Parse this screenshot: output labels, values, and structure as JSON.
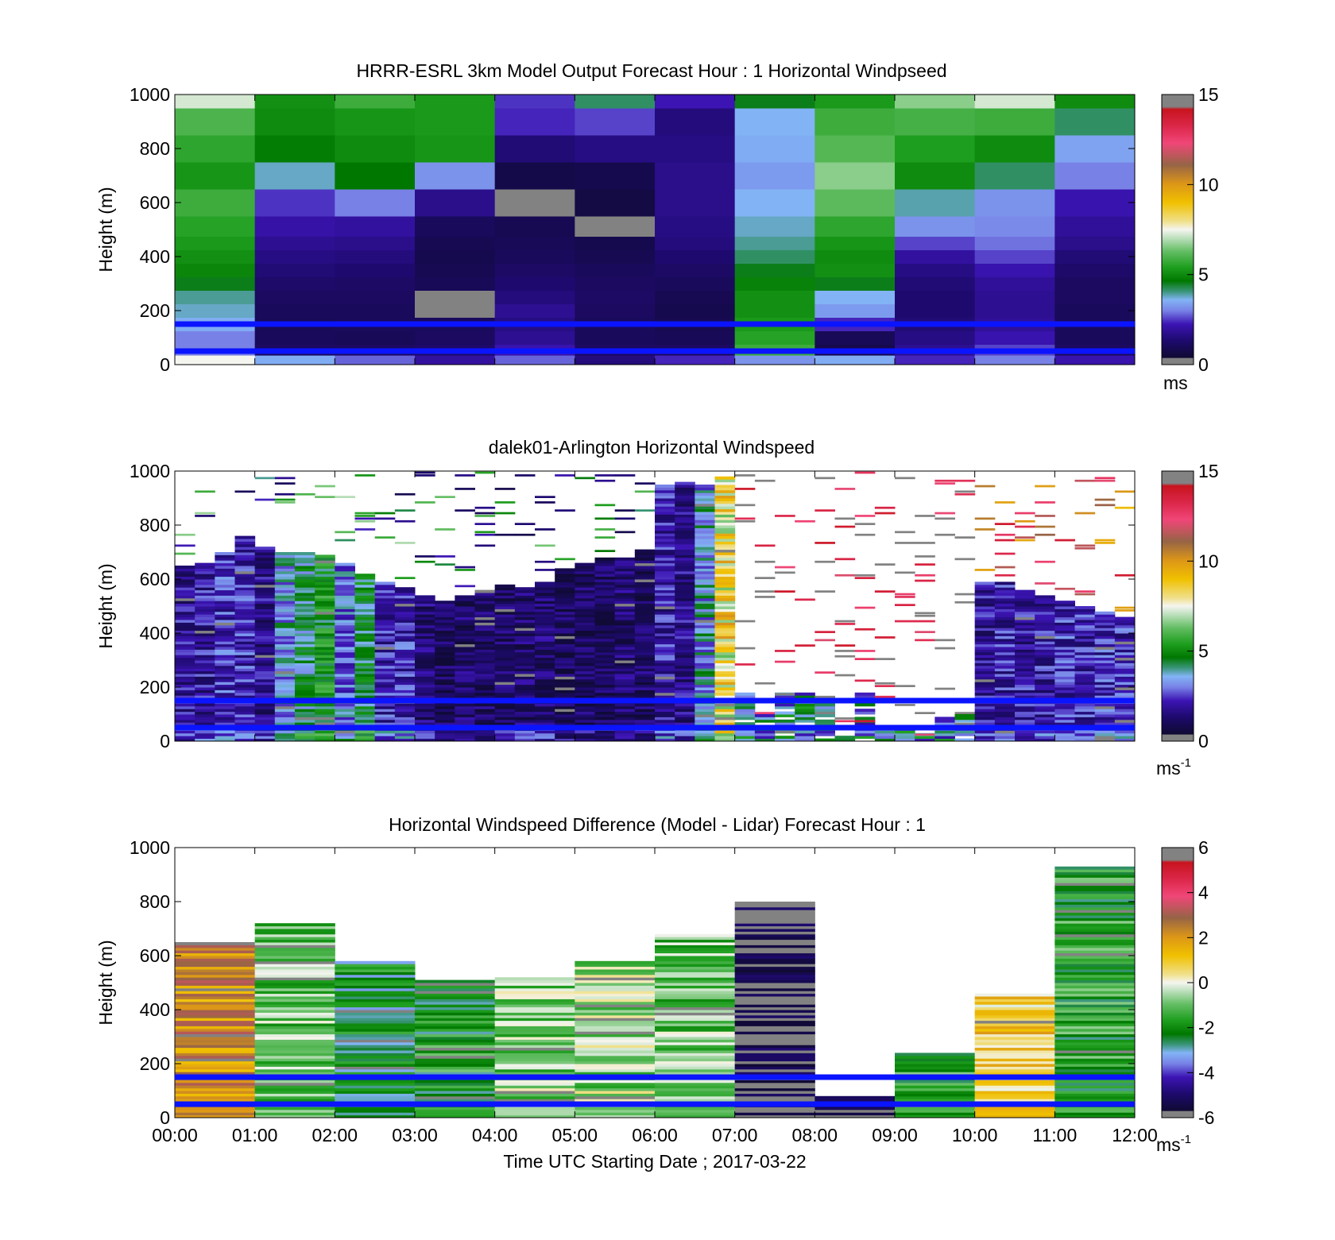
{
  "chart_data": [
    {
      "type": "heatmap",
      "title": "HRRR-ESRL 3km Model Output   Forecast Hour : 1 Horizontal Windpseed",
      "ylabel": "Height (m)",
      "xlabel": "",
      "x_ticks": [
        "",
        "",
        "",
        "",
        "",
        "",
        "",
        "",
        "",
        "",
        "",
        "",
        ""
      ],
      "y_ticks": [
        "0",
        "200",
        "400",
        "600",
        "800",
        "1000"
      ],
      "ylim": [
        0,
        1000
      ],
      "xlim_hours": [
        0,
        12
      ],
      "colorbar": {
        "ticks": [
          "0",
          "5",
          "10",
          "15"
        ],
        "range": [
          0,
          15
        ],
        "unit": "ms",
        "unit_sup": ""
      },
      "reference_lines_m": [
        50,
        150
      ],
      "grid": false,
      "model_levels_m": [
        20,
        50,
        100,
        150,
        200,
        250,
        300,
        350,
        400,
        450,
        500,
        600,
        700,
        800,
        900,
        1000
      ],
      "columns": [
        [
          7.5,
          3.0,
          3.0,
          3.5,
          3.8,
          4.0,
          4.5,
          4.9,
          5.1,
          5.3,
          5.5,
          5.8,
          5.2,
          5.6,
          6.0,
          7.2
        ],
        [
          3.5,
          1.0,
          0.9,
          0.8,
          0.9,
          1.0,
          1.2,
          1.4,
          1.6,
          1.8,
          2.1,
          2.5,
          3.8,
          4.7,
          5.0,
          5.1
        ],
        [
          2.8,
          1.0,
          0.8,
          0.9,
          0.9,
          1.0,
          1.1,
          1.3,
          1.5,
          1.7,
          2.0,
          3.0,
          4.6,
          5.0,
          5.2,
          5.8
        ],
        [
          2.0,
          1.2,
          1.0,
          0.9,
          -1,
          -1,
          0.8,
          0.7,
          0.6,
          0.7,
          0.9,
          1.7,
          3.2,
          5.2,
          5.3,
          5.3
        ],
        [
          2.8,
          2.2,
          1.8,
          1.6,
          1.8,
          1.5,
          1.3,
          1.1,
          0.9,
          0.8,
          0.7,
          -1,
          0.5,
          1.4,
          2.4,
          2.5
        ],
        [
          1.5,
          1.0,
          0.9,
          0.9,
          1.0,
          1.1,
          1.0,
          0.9,
          0.7,
          0.6,
          -1,
          0.4,
          0.6,
          1.6,
          2.6,
          4.2
        ],
        [
          2.4,
          1.0,
          0.8,
          0.7,
          0.6,
          0.7,
          0.9,
          1.1,
          1.3,
          1.5,
          1.6,
          1.7,
          1.7,
          1.6,
          1.5,
          2.3
        ],
        [
          3.2,
          5.8,
          5.5,
          5.3,
          5.1,
          5.1,
          4.8,
          4.5,
          4.2,
          4.0,
          3.8,
          3.6,
          3.3,
          3.5,
          3.6,
          4.5
        ],
        [
          3.5,
          0.6,
          0.8,
          2.4,
          3.3,
          3.6,
          4.5,
          5.1,
          5.0,
          5.2,
          5.6,
          6.2,
          6.6,
          6.1,
          5.8,
          5.3
        ],
        [
          2.4,
          1.8,
          1.6,
          1.4,
          1.3,
          1.3,
          1.4,
          1.6,
          2.0,
          2.6,
          3.2,
          3.9,
          5.0,
          5.4,
          5.9,
          6.6
        ],
        [
          3.0,
          2.6,
          2.2,
          1.9,
          1.8,
          1.8,
          1.9,
          2.2,
          2.6,
          2.9,
          3.1,
          3.2,
          4.2,
          5.0,
          5.8,
          7.2
        ],
        [
          2.2,
          1.0,
          0.9,
          0.9,
          0.9,
          1.0,
          1.0,
          1.2,
          1.4,
          1.7,
          1.9,
          2.2,
          3.0,
          3.4,
          4.2,
          5.0
        ]
      ]
    },
    {
      "type": "heatmap",
      "title": "dalek01-Arlington  Horizontal Windspeed",
      "ylabel": "Height (m)",
      "xlabel": "",
      "x_ticks": [
        "",
        "",
        "",
        "",
        "",
        "",
        "",
        "",
        "",
        "",
        "",
        "",
        ""
      ],
      "y_ticks": [
        "0",
        "200",
        "400",
        "600",
        "800",
        "1000"
      ],
      "ylim": [
        0,
        1000
      ],
      "xlim_hours": [
        0,
        12
      ],
      "colorbar": {
        "ticks": [
          "0",
          "5",
          "10",
          "15"
        ],
        "range": [
          0,
          15
        ],
        "unit": "ms",
        "unit_sup": "-1"
      },
      "reference_lines_m": [
        50,
        150
      ],
      "grid": false,
      "time_resolution_hours": 0.25,
      "main_layer_top_m": [
        650,
        660,
        700,
        760,
        720,
        700,
        700,
        690,
        660,
        620,
        590,
        570,
        540,
        520,
        540,
        560,
        580,
        570,
        590,
        640,
        660,
        680,
        680,
        710,
        950,
        960,
        950,
        980,
        0,
        0,
        0,
        0,
        0,
        0,
        0,
        0,
        0,
        0,
        0,
        0,
        590,
        590,
        560,
        540,
        520,
        500,
        480,
        460
      ],
      "main_layer_mean_ms": [
        1.8,
        1.9,
        2.4,
        2.3,
        1.6,
        3.5,
        4.2,
        5.0,
        3.0,
        4.4,
        2.2,
        2.3,
        1.3,
        0.9,
        1.1,
        1.0,
        1.0,
        1.2,
        1.3,
        0.8,
        0.9,
        0.9,
        1.2,
        1.0,
        2.0,
        1.6,
        3.5,
        8.2,
        12.5,
        11.6,
        11.0,
        10.3,
        5.0,
        3.2,
        2.0,
        2.0,
        2.2,
        1.8,
        1.6,
        1.5,
        1.8,
        2.0,
        1.9,
        2.0,
        2.3,
        2.1,
        2.3,
        2.2
      ]
    },
    {
      "type": "heatmap",
      "title": "Horizontal Windspeed Difference (Model - Lidar) Forecast Hour : 1",
      "ylabel": "Height (m)",
      "xlabel": "Time UTC  Starting Date ; 2017-03-22",
      "x_ticks": [
        "00:00",
        "01:00",
        "02:00",
        "03:00",
        "04:00",
        "05:00",
        "06:00",
        "07:00",
        "08:00",
        "09:00",
        "10:00",
        "11:00",
        "12:00"
      ],
      "y_ticks": [
        "0",
        "200",
        "400",
        "600",
        "800",
        "1000"
      ],
      "ylim": [
        0,
        1000
      ],
      "xlim_hours": [
        0,
        12
      ],
      "colorbar": {
        "ticks": [
          "-6",
          "-4",
          "-2",
          "0",
          "2",
          "4",
          "6"
        ],
        "range": [
          -6,
          6
        ],
        "unit": "ms",
        "unit_sup": "-1"
      },
      "reference_lines_m": [
        50,
        150
      ],
      "grid": false,
      "hourly_layer_top_m": [
        650,
        720,
        580,
        510,
        520,
        580,
        680,
        800,
        80,
        240,
        460,
        930
      ],
      "hourly_mean_diff_ms": [
        2.2,
        -1.0,
        -2.3,
        -1.9,
        -0.8,
        -0.6,
        -1.0,
        -6.0,
        -5.8,
        -1.8,
        0.9,
        -1.7
      ]
    }
  ]
}
